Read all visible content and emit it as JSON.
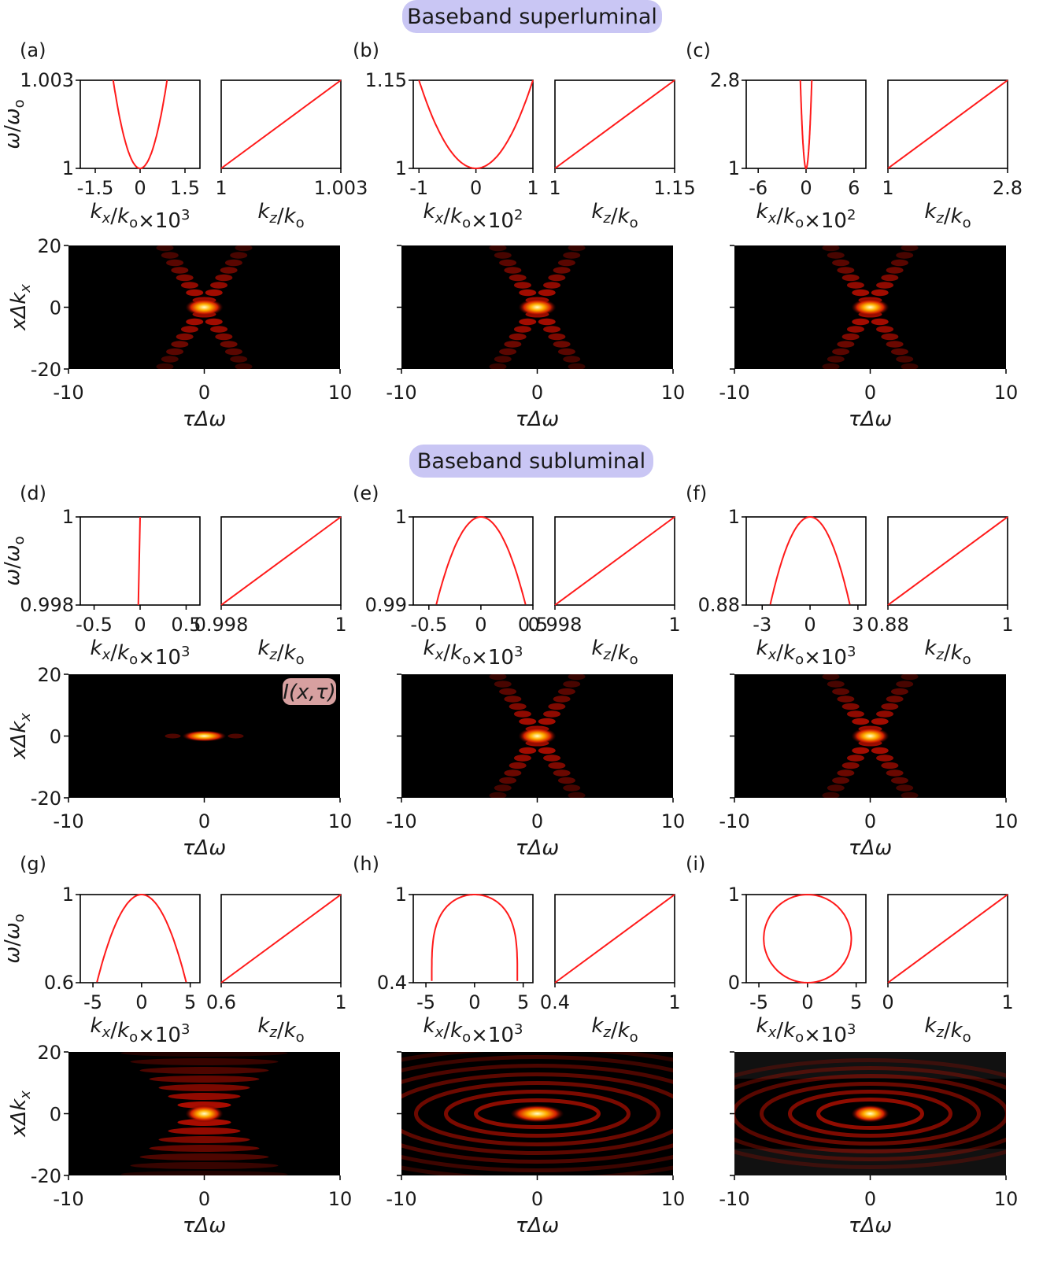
{
  "headers": {
    "superluminal": "Baseband superluminal",
    "subluminal": "Baseband subluminal"
  },
  "intensity_label": "I(x,τ)",
  "colors": {
    "curve": "#ff1a1a",
    "header_bg": "#c9c6f4",
    "label_bg": "#d7a0a0"
  },
  "chart_data": [
    {
      "panel": "(a)",
      "type": "line",
      "spectral_left": {
        "xlabel": "kx/ko×10^3",
        "ylabel": "ω/ωo",
        "xticks": [
          "-1.5",
          "0",
          "1.5"
        ],
        "yticks": [
          "1",
          "1.003"
        ],
        "xlim": [
          -2.0,
          2.0
        ],
        "ylim": [
          1,
          1.003
        ],
        "shape": "parabola_up",
        "reach": 0.9
      },
      "spectral_right": {
        "xlabel": "kz/ko",
        "xticks": [
          "1",
          "1.003"
        ],
        "xlim": [
          1,
          1.003
        ],
        "ylim": [
          1,
          1.003
        ],
        "shape": "linear"
      },
      "intensity": {
        "type": "heatmap",
        "xlabel": "τΔω",
        "ylabel": "xΔkx",
        "xticks": [
          "-10",
          "0",
          "10"
        ],
        "yticks": [
          "20",
          "0",
          "-20"
        ],
        "xlim": [
          -10,
          10
        ],
        "ylim": [
          -20,
          20
        ],
        "pattern": "x"
      }
    },
    {
      "panel": "(b)",
      "type": "line",
      "spectral_left": {
        "xlabel": "kx/ko×10^2",
        "ylabel": "",
        "xticks": [
          "-1",
          "0",
          "1"
        ],
        "yticks": [
          "1",
          "1.15"
        ],
        "xlim": [
          -1.1,
          1.0
        ],
        "ylim": [
          1,
          1.15
        ],
        "shape": "parabola_up",
        "reach": 1.0
      },
      "spectral_right": {
        "xlabel": "kz/ko",
        "xticks": [
          "1",
          "1.15"
        ],
        "xlim": [
          1,
          1.15
        ],
        "ylim": [
          1,
          1.15
        ],
        "shape": "linear"
      },
      "intensity": {
        "type": "heatmap",
        "xlabel": "τΔω",
        "ylabel": "",
        "xticks": [
          "-10",
          "0",
          "10"
        ],
        "yticks": [],
        "xlim": [
          -10,
          10
        ],
        "ylim": [
          -20,
          20
        ],
        "pattern": "x"
      }
    },
    {
      "panel": "(c)",
      "type": "line",
      "spectral_left": {
        "xlabel": "kx/ko×10^2",
        "ylabel": "",
        "xticks": [
          "-6",
          "0",
          "6"
        ],
        "yticks": [
          "1",
          "2.8"
        ],
        "xlim": [
          -7.5,
          7.5
        ],
        "ylim": [
          1,
          2.8
        ],
        "shape": "parabola_up",
        "reach": 0.72
      },
      "spectral_right": {
        "xlabel": "kz/ko",
        "xticks": [
          "1",
          "2.8"
        ],
        "xlim": [
          1,
          2.8
        ],
        "ylim": [
          1,
          2.8
        ],
        "shape": "linear"
      },
      "intensity": {
        "type": "heatmap",
        "xlabel": "τΔω",
        "ylabel": "",
        "xticks": [
          "-10",
          "0",
          "10"
        ],
        "yticks": [],
        "xlim": [
          -10,
          10
        ],
        "ylim": [
          -20,
          20
        ],
        "pattern": "x"
      }
    },
    {
      "panel": "(d)",
      "type": "line",
      "spectral_left": {
        "xlabel": "kx/ko×10^3",
        "ylabel": "ω/ωo",
        "xticks": [
          "-0.5",
          "0",
          "0.5"
        ],
        "yticks": [
          "0.998",
          "1"
        ],
        "xlim": [
          -0.65,
          0.65
        ],
        "ylim": [
          0.998,
          1
        ],
        "shape": "narrow",
        "reach": 0.03
      },
      "spectral_right": {
        "xlabel": "kz/ko",
        "xticks": [
          "0.998",
          "1"
        ],
        "xlim": [
          0.998,
          1
        ],
        "ylim": [
          0.998,
          1
        ],
        "shape": "linear"
      },
      "intensity": {
        "type": "heatmap",
        "xlabel": "τΔω",
        "ylabel": "xΔkx",
        "xticks": [
          "-10",
          "0",
          "10"
        ],
        "yticks": [
          "20",
          "0",
          "-20"
        ],
        "xlim": [
          -10,
          10
        ],
        "ylim": [
          -20,
          20
        ],
        "pattern": "spot"
      }
    },
    {
      "panel": "(e)",
      "type": "line",
      "spectral_left": {
        "xlabel": "kx/ko×10^3",
        "ylabel": "",
        "xticks": [
          "-0.5",
          "0",
          "0.5"
        ],
        "yticks": [
          "0.99",
          "1"
        ],
        "xlim": [
          -0.65,
          0.5
        ],
        "ylim": [
          0.99,
          1
        ],
        "shape": "parabola_down",
        "reach": 0.43
      },
      "spectral_right": {
        "xlabel": "kz/ko",
        "xticks": [
          "0.998",
          "1"
        ],
        "xlim": [
          0.997,
          1
        ],
        "ylim": [
          0.99,
          1
        ],
        "shape": "linear"
      },
      "intensity": {
        "type": "heatmap",
        "xlabel": "τΔω",
        "ylabel": "",
        "xticks": [
          "-10",
          "0",
          "10"
        ],
        "yticks": [],
        "xlim": [
          -10,
          10
        ],
        "ylim": [
          -20,
          20
        ],
        "pattern": "x"
      }
    },
    {
      "panel": "(f)",
      "type": "line",
      "spectral_left": {
        "xlabel": "kx/ko×10^3",
        "ylabel": "",
        "xticks": [
          "-3",
          "0",
          "3"
        ],
        "yticks": [
          "0.88",
          "1"
        ],
        "xlim": [
          -4.0,
          3.5
        ],
        "ylim": [
          0.88,
          1
        ],
        "shape": "parabola_down",
        "reach": 2.5
      },
      "spectral_right": {
        "xlabel": "kz/ko",
        "xticks": [
          "0.88",
          "1"
        ],
        "xlim": [
          0.88,
          1
        ],
        "ylim": [
          0.88,
          1
        ],
        "shape": "linear"
      },
      "intensity": {
        "type": "heatmap",
        "xlabel": "τΔω",
        "ylabel": "",
        "xticks": [
          "-10",
          "0",
          "10"
        ],
        "yticks": [],
        "xlim": [
          -10,
          10
        ],
        "ylim": [
          -20,
          20
        ],
        "pattern": "x"
      }
    },
    {
      "panel": "(g)",
      "type": "line",
      "spectral_left": {
        "xlabel": "kx/ko×10^3",
        "ylabel": "ω/ωo",
        "xticks": [
          "-5",
          "0",
          "5"
        ],
        "yticks": [
          "0.6",
          "1"
        ],
        "xlim": [
          -6.3,
          6.0
        ],
        "ylim": [
          0.6,
          1
        ],
        "shape": "parabola_down",
        "reach": 4.6
      },
      "spectral_right": {
        "xlabel": "kz/ko",
        "xticks": [
          "0.6",
          "1"
        ],
        "xlim": [
          0.6,
          1
        ],
        "ylim": [
          0.6,
          1
        ],
        "shape": "linear"
      },
      "intensity": {
        "type": "heatmap",
        "xlabel": "τΔω",
        "ylabel": "xΔkx",
        "xticks": [
          "-10",
          "0",
          "10"
        ],
        "yticks": [
          "20",
          "0",
          "-20"
        ],
        "xlim": [
          -10,
          10
        ],
        "ylim": [
          -20,
          20
        ],
        "pattern": "fan"
      }
    },
    {
      "panel": "(h)",
      "type": "line",
      "spectral_left": {
        "xlabel": "kx/ko×10^3",
        "ylabel": "",
        "xticks": [
          "-5",
          "0",
          "5"
        ],
        "yticks": [
          "0.4",
          "1"
        ],
        "xlim": [
          -6.3,
          6.0
        ],
        "ylim": [
          0.4,
          1
        ],
        "shape": "arch",
        "reach": 4.4
      },
      "spectral_right": {
        "xlabel": "kz/ko",
        "xticks": [
          "0.4",
          "1"
        ],
        "xlim": [
          0.4,
          1
        ],
        "ylim": [
          0.4,
          1
        ],
        "shape": "linear"
      },
      "intensity": {
        "type": "heatmap",
        "xlabel": "τΔω",
        "ylabel": "",
        "xticks": [
          "-10",
          "0",
          "10"
        ],
        "yticks": [],
        "xlim": [
          -10,
          10
        ],
        "ylim": [
          -20,
          20
        ],
        "pattern": "rings"
      }
    },
    {
      "panel": "(i)",
      "type": "line",
      "spectral_left": {
        "xlabel": "kx/ko×10^3",
        "ylabel": "",
        "xticks": [
          "-5",
          "0",
          "5"
        ],
        "yticks": [
          "0",
          "1"
        ],
        "xlim": [
          -6.3,
          6.0
        ],
        "ylim": [
          0,
          1
        ],
        "shape": "ellipse",
        "reach": 4.5
      },
      "spectral_right": {
        "xlabel": "kz/ko",
        "xticks": [
          "0",
          "1"
        ],
        "xlim": [
          0,
          1
        ],
        "ylim": [
          0,
          1
        ],
        "shape": "linear"
      },
      "intensity": {
        "type": "heatmap",
        "xlabel": "τΔω",
        "ylabel": "",
        "xticks": [
          "-10",
          "0",
          "10"
        ],
        "yticks": [],
        "xlim": [
          -10,
          10
        ],
        "ylim": [
          -20,
          20
        ],
        "pattern": "ellipse_rings"
      }
    }
  ]
}
